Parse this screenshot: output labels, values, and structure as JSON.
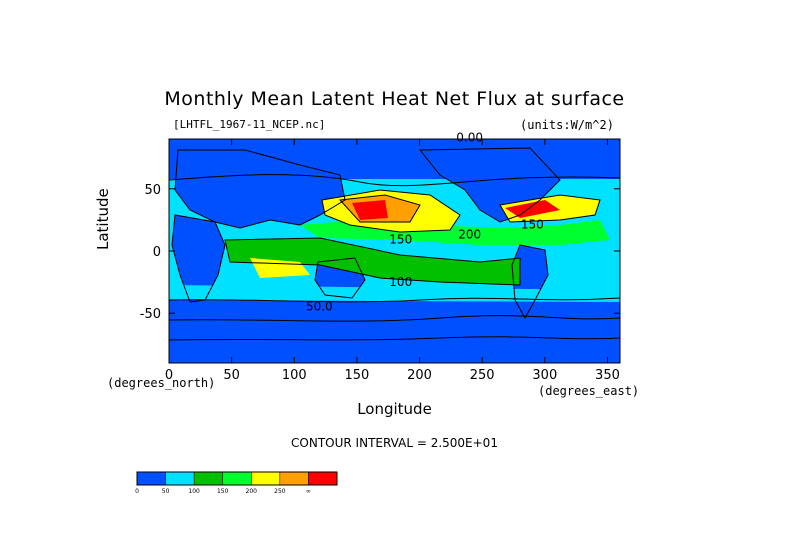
{
  "chart_data": {
    "type": "heatmap",
    "title": "Monthly Mean Latent Heat Net Flux at surface",
    "dataset_label": "[LHTFL_1967-11_NCEP.nc]",
    "units_label": "(units:W/m^2)",
    "xlabel": "Longitude",
    "ylabel": "Latitude",
    "xlabel_unit": "(degrees_east)",
    "ylabel_unit": "(degrees_north)",
    "xlim": [
      0,
      360
    ],
    "ylim": [
      -90,
      90
    ],
    "x_ticks": [
      0,
      50,
      100,
      150,
      200,
      250,
      300,
      350
    ],
    "y_ticks": [
      -50,
      0,
      50
    ],
    "contour_interval_text": "CONTOUR INTERVAL = 2.500E+01",
    "colorbar": {
      "colors": [
        "#0050ff",
        "#00e0ff",
        "#00c000",
        "#00ff30",
        "#ffff00",
        "#ffa000",
        "#ff0000"
      ],
      "ticks": [
        "0",
        "50",
        "100",
        "150",
        "200",
        "250",
        "∞"
      ]
    },
    "contour_labels": [
      {
        "text": "0.00",
        "lon": 240,
        "lat": 88
      },
      {
        "text": "150",
        "lon": 185,
        "lat": 6
      },
      {
        "text": "100",
        "lon": 185,
        "lat": -28
      },
      {
        "text": "50.0",
        "lon": 120,
        "lat": -48
      },
      {
        "text": "200",
        "lon": 240,
        "lat": 10
      },
      {
        "text": "150",
        "lon": 290,
        "lat": 18
      }
    ]
  }
}
